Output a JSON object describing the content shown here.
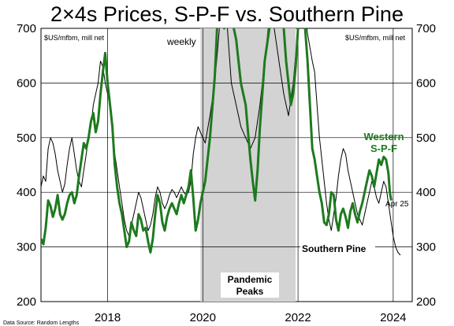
{
  "chart_data": {
    "type": "line",
    "title": "2×4s Prices, S-P-F vs. Southern Pine",
    "ylabel_left": "$US/mfbm, mill net",
    "ylabel_right": "$US/mfbm, mill net",
    "ylim": [
      200,
      700
    ],
    "yticks": [
      200,
      300,
      400,
      500,
      600,
      700
    ],
    "xlim": [
      2016.6,
      2024.4
    ],
    "xticks": [
      2018,
      2020,
      2022,
      2024
    ],
    "annotations": {
      "frequency": "weekly",
      "shaded_label_line1": "Pandemic",
      "shaded_label_line2": "Peaks",
      "green_label_line1": "Western",
      "green_label_line2": "S-P-F",
      "end_date": "Apr 25",
      "black_label": "Southern Pine",
      "source": "Data Source: Random Lengths"
    },
    "shaded_region": {
      "from": 2019.95,
      "to": 2021.95
    },
    "colors": {
      "western_spf": "#1e7a1e",
      "southern_pine": "#000000",
      "shade": "#d3d3d3"
    },
    "series": [
      {
        "name": "Western S-P-F",
        "points": [
          [
            2016.6,
            315
          ],
          [
            2016.65,
            305
          ],
          [
            2016.7,
            335
          ],
          [
            2016.75,
            385
          ],
          [
            2016.8,
            375
          ],
          [
            2016.85,
            355
          ],
          [
            2016.9,
            370
          ],
          [
            2016.95,
            395
          ],
          [
            2017.0,
            360
          ],
          [
            2017.05,
            350
          ],
          [
            2017.1,
            360
          ],
          [
            2017.15,
            380
          ],
          [
            2017.2,
            395
          ],
          [
            2017.25,
            400
          ],
          [
            2017.3,
            380
          ],
          [
            2017.35,
            395
          ],
          [
            2017.4,
            430
          ],
          [
            2017.45,
            460
          ],
          [
            2017.5,
            490
          ],
          [
            2017.55,
            480
          ],
          [
            2017.6,
            500
          ],
          [
            2017.65,
            530
          ],
          [
            2017.7,
            545
          ],
          [
            2017.75,
            510
          ],
          [
            2017.8,
            530
          ],
          [
            2017.85,
            580
          ],
          [
            2017.9,
            620
          ],
          [
            2017.95,
            655
          ],
          [
            2018.0,
            600
          ],
          [
            2018.05,
            560
          ],
          [
            2018.1,
            520
          ],
          [
            2018.15,
            450
          ],
          [
            2018.2,
            410
          ],
          [
            2018.25,
            380
          ],
          [
            2018.3,
            360
          ],
          [
            2018.35,
            330
          ],
          [
            2018.4,
            300
          ],
          [
            2018.45,
            310
          ],
          [
            2018.5,
            345
          ],
          [
            2018.55,
            330
          ],
          [
            2018.6,
            320
          ],
          [
            2018.65,
            360
          ],
          [
            2018.7,
            350
          ],
          [
            2018.75,
            330
          ],
          [
            2018.8,
            335
          ],
          [
            2018.85,
            310
          ],
          [
            2018.9,
            290
          ],
          [
            2018.95,
            315
          ],
          [
            2019.0,
            360
          ],
          [
            2019.05,
            395
          ],
          [
            2019.1,
            380
          ],
          [
            2019.15,
            345
          ],
          [
            2019.2,
            330
          ],
          [
            2019.25,
            355
          ],
          [
            2019.3,
            370
          ],
          [
            2019.35,
            380
          ],
          [
            2019.4,
            370
          ],
          [
            2019.45,
            360
          ],
          [
            2019.5,
            380
          ],
          [
            2019.55,
            395
          ],
          [
            2019.6,
            380
          ],
          [
            2019.65,
            395
          ],
          [
            2019.7,
            410
          ],
          [
            2019.75,
            440
          ],
          [
            2019.8,
            390
          ],
          [
            2019.85,
            330
          ],
          [
            2019.9,
            350
          ],
          [
            2019.95,
            380
          ],
          [
            2020.05,
            420
          ],
          [
            2020.15,
            500
          ],
          [
            2020.25,
            610
          ],
          [
            2020.3,
            700
          ],
          [
            2020.35,
            760
          ],
          [
            2020.4,
            780
          ],
          [
            2020.45,
            700
          ],
          [
            2020.5,
            720
          ],
          [
            2020.55,
            800
          ],
          [
            2020.6,
            760
          ],
          [
            2020.65,
            700
          ],
          [
            2020.7,
            680
          ],
          [
            2020.75,
            640
          ],
          [
            2020.8,
            600
          ],
          [
            2020.9,
            560
          ],
          [
            2021.0,
            460
          ],
          [
            2021.05,
            420
          ],
          [
            2021.1,
            385
          ],
          [
            2021.15,
            440
          ],
          [
            2021.2,
            520
          ],
          [
            2021.3,
            640
          ],
          [
            2021.4,
            700
          ],
          [
            2021.5,
            780
          ],
          [
            2021.6,
            760
          ],
          [
            2021.7,
            700
          ],
          [
            2021.75,
            640
          ],
          [
            2021.8,
            600
          ],
          [
            2021.85,
            560
          ],
          [
            2021.9,
            580
          ],
          [
            2021.95,
            630
          ],
          [
            2022.0,
            700
          ],
          [
            2022.05,
            780
          ],
          [
            2022.1,
            760
          ],
          [
            2022.15,
            700
          ],
          [
            2022.2,
            640
          ],
          [
            2022.25,
            560
          ],
          [
            2022.3,
            480
          ],
          [
            2022.35,
            460
          ],
          [
            2022.4,
            430
          ],
          [
            2022.45,
            400
          ],
          [
            2022.5,
            380
          ],
          [
            2022.55,
            345
          ],
          [
            2022.6,
            340
          ],
          [
            2022.65,
            360
          ],
          [
            2022.7,
            400
          ],
          [
            2022.75,
            395
          ],
          [
            2022.8,
            350
          ],
          [
            2022.85,
            330
          ],
          [
            2022.9,
            360
          ],
          [
            2022.95,
            370
          ],
          [
            2023.0,
            355
          ],
          [
            2023.05,
            335
          ],
          [
            2023.1,
            365
          ],
          [
            2023.15,
            380
          ],
          [
            2023.2,
            360
          ],
          [
            2023.25,
            345
          ],
          [
            2023.3,
            365
          ],
          [
            2023.35,
            380
          ],
          [
            2023.4,
            400
          ],
          [
            2023.45,
            420
          ],
          [
            2023.5,
            440
          ],
          [
            2023.55,
            430
          ],
          [
            2023.6,
            410
          ],
          [
            2023.65,
            435
          ],
          [
            2023.7,
            460
          ],
          [
            2023.75,
            450
          ],
          [
            2023.8,
            465
          ],
          [
            2023.85,
            460
          ],
          [
            2023.9,
            435
          ],
          [
            2023.93,
            400
          ],
          [
            2023.96,
            385
          ]
        ]
      },
      {
        "name": "Southern Pine",
        "points": [
          [
            2016.6,
            410
          ],
          [
            2016.65,
            430
          ],
          [
            2016.7,
            420
          ],
          [
            2016.75,
            480
          ],
          [
            2016.8,
            500
          ],
          [
            2016.85,
            490
          ],
          [
            2016.9,
            470
          ],
          [
            2016.95,
            440
          ],
          [
            2017.0,
            420
          ],
          [
            2017.05,
            400
          ],
          [
            2017.1,
            415
          ],
          [
            2017.15,
            450
          ],
          [
            2017.2,
            480
          ],
          [
            2017.25,
            500
          ],
          [
            2017.3,
            470
          ],
          [
            2017.35,
            440
          ],
          [
            2017.4,
            420
          ],
          [
            2017.45,
            410
          ],
          [
            2017.5,
            440
          ],
          [
            2017.55,
            470
          ],
          [
            2017.6,
            500
          ],
          [
            2017.65,
            520
          ],
          [
            2017.7,
            560
          ],
          [
            2017.75,
            580
          ],
          [
            2017.8,
            600
          ],
          [
            2017.85,
            640
          ],
          [
            2017.9,
            630
          ],
          [
            2017.95,
            600
          ],
          [
            2018.0,
            580
          ],
          [
            2018.05,
            560
          ],
          [
            2018.1,
            520
          ],
          [
            2018.15,
            470
          ],
          [
            2018.2,
            440
          ],
          [
            2018.25,
            410
          ],
          [
            2018.3,
            380
          ],
          [
            2018.35,
            350
          ],
          [
            2018.4,
            330
          ],
          [
            2018.45,
            320
          ],
          [
            2018.5,
            340
          ],
          [
            2018.55,
            360
          ],
          [
            2018.6,
            380
          ],
          [
            2018.65,
            400
          ],
          [
            2018.7,
            390
          ],
          [
            2018.75,
            370
          ],
          [
            2018.8,
            350
          ],
          [
            2018.85,
            330
          ],
          [
            2018.9,
            340
          ],
          [
            2018.95,
            360
          ],
          [
            2019.0,
            390
          ],
          [
            2019.05,
            410
          ],
          [
            2019.1,
            400
          ],
          [
            2019.15,
            380
          ],
          [
            2019.2,
            370
          ],
          [
            2019.25,
            380
          ],
          [
            2019.3,
            395
          ],
          [
            2019.35,
            405
          ],
          [
            2019.4,
            400
          ],
          [
            2019.45,
            390
          ],
          [
            2019.5,
            400
          ],
          [
            2019.55,
            410
          ],
          [
            2019.6,
            400
          ],
          [
            2019.65,
            395
          ],
          [
            2019.7,
            400
          ],
          [
            2019.75,
            420
          ],
          [
            2019.8,
            470
          ],
          [
            2019.85,
            500
          ],
          [
            2019.9,
            520
          ],
          [
            2019.95,
            510
          ],
          [
            2020.05,
            490
          ],
          [
            2020.15,
            540
          ],
          [
            2020.25,
            600
          ],
          [
            2020.35,
            700
          ],
          [
            2020.4,
            760
          ],
          [
            2020.5,
            720
          ],
          [
            2020.6,
            600
          ],
          [
            2020.7,
            560
          ],
          [
            2020.8,
            520
          ],
          [
            2020.9,
            500
          ],
          [
            2021.0,
            480
          ],
          [
            2021.1,
            500
          ],
          [
            2021.2,
            560
          ],
          [
            2021.3,
            640
          ],
          [
            2021.4,
            720
          ],
          [
            2021.5,
            700
          ],
          [
            2021.6,
            640
          ],
          [
            2021.7,
            580
          ],
          [
            2021.8,
            540
          ],
          [
            2021.9,
            600
          ],
          [
            2022.0,
            700
          ],
          [
            2022.1,
            760
          ],
          [
            2022.2,
            690
          ],
          [
            2022.3,
            640
          ],
          [
            2022.35,
            620
          ],
          [
            2022.4,
            560
          ],
          [
            2022.45,
            500
          ],
          [
            2022.5,
            460
          ],
          [
            2022.55,
            420
          ],
          [
            2022.6,
            380
          ],
          [
            2022.65,
            350
          ],
          [
            2022.7,
            330
          ],
          [
            2022.75,
            360
          ],
          [
            2022.8,
            390
          ],
          [
            2022.85,
            430
          ],
          [
            2022.9,
            460
          ],
          [
            2022.95,
            480
          ],
          [
            2023.0,
            470
          ],
          [
            2023.05,
            440
          ],
          [
            2023.1,
            420
          ],
          [
            2023.15,
            400
          ],
          [
            2023.2,
            380
          ],
          [
            2023.25,
            360
          ],
          [
            2023.3,
            350
          ],
          [
            2023.35,
            340
          ],
          [
            2023.4,
            360
          ],
          [
            2023.45,
            380
          ],
          [
            2023.5,
            400
          ],
          [
            2023.55,
            420
          ],
          [
            2023.6,
            410
          ],
          [
            2023.65,
            390
          ],
          [
            2023.7,
            380
          ],
          [
            2023.75,
            400
          ],
          [
            2023.8,
            420
          ],
          [
            2023.85,
            410
          ],
          [
            2023.9,
            380
          ],
          [
            2023.95,
            350
          ],
          [
            2024.0,
            320
          ],
          [
            2024.05,
            300
          ],
          [
            2024.1,
            290
          ],
          [
            2024.15,
            285
          ]
        ]
      }
    ]
  }
}
